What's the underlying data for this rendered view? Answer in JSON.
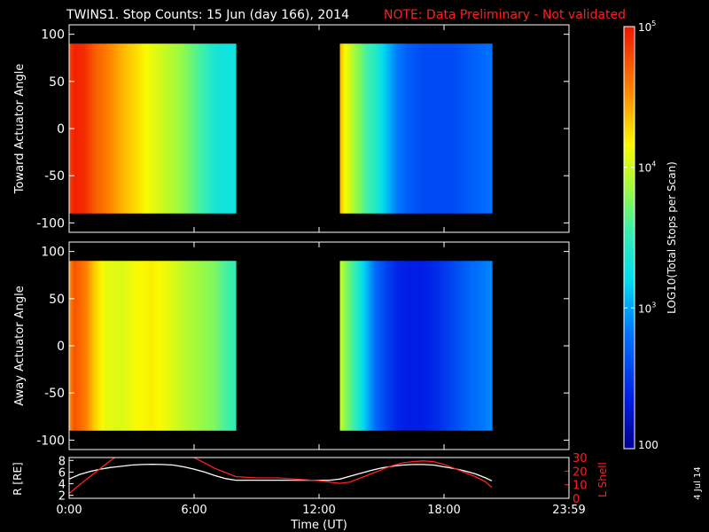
{
  "title": "TWINS1. Stop Counts: 15 Jun (day 166), 2014",
  "note": "NOTE: Data Preliminary - Not validated",
  "stamp": "4 Jul 14",
  "colors": {
    "background": "#000000",
    "axes": "#ffffff",
    "note": "#ff2020",
    "lshell": "#ff2020",
    "radius": "#ffffff"
  },
  "chart_data": [
    {
      "type": "heatmap",
      "panel": "toward",
      "ylabel": "Toward Actuator Angle",
      "ylim": [
        -110,
        110
      ],
      "yticks": [
        100,
        50,
        0,
        -50,
        -100
      ],
      "xlim": [
        0,
        24
      ],
      "y_range_data": [
        -90,
        90
      ],
      "time_blocks_hours": [
        [
          0.0,
          8.0
        ],
        [
          13.0,
          20.3
        ]
      ],
      "profile_time_hours": [
        0,
        0.25,
        0.75,
        1.25,
        1.75,
        2.5,
        3.25,
        4.0,
        4.75,
        5.5,
        6.25,
        7.0,
        7.5,
        8.0,
        13.0,
        13.25,
        13.75,
        14.25,
        14.75,
        15.25,
        15.75,
        16.25,
        17.0,
        17.75,
        18.5,
        19.25,
        20.3
      ],
      "profile_log10_counts": [
        4.8,
        4.95,
        4.9,
        4.7,
        4.6,
        4.4,
        4.25,
        4.1,
        3.95,
        3.8,
        3.6,
        3.35,
        3.3,
        3.3,
        4.4,
        4.15,
        3.85,
        3.6,
        3.4,
        3.1,
        2.85,
        2.7,
        2.6,
        2.6,
        2.6,
        2.7,
        2.8
      ]
    },
    {
      "type": "heatmap",
      "panel": "away",
      "ylabel": "Away Actuator Angle",
      "ylim": [
        -110,
        110
      ],
      "yticks": [
        100,
        50,
        0,
        -50,
        -100
      ],
      "xlim": [
        0,
        24
      ],
      "y_range_data": [
        -90,
        90
      ],
      "time_blocks_hours": [
        [
          0.0,
          8.0
        ],
        [
          13.0,
          20.3
        ]
      ],
      "profile_time_hours": [
        0,
        0.25,
        0.75,
        1.25,
        1.75,
        2.5,
        3.25,
        4.0,
        4.75,
        5.5,
        6.25,
        7.0,
        7.5,
        8.0,
        13.0,
        13.25,
        13.75,
        14.25,
        14.75,
        15.25,
        15.75,
        16.25,
        17.0,
        17.75,
        18.5,
        19.25,
        20.3
      ],
      "profile_log10_counts": [
        4.5,
        4.75,
        4.6,
        4.3,
        4.1,
        4.05,
        4.15,
        4.2,
        4.1,
        3.95,
        3.85,
        3.75,
        3.6,
        3.5,
        4.0,
        3.8,
        3.5,
        3.1,
        2.75,
        2.55,
        2.4,
        2.35,
        2.35,
        2.45,
        2.6,
        2.75,
        2.9
      ]
    },
    {
      "type": "line",
      "panel": "orbit",
      "xlabel": "Time (UT)",
      "xlim": [
        0,
        24
      ],
      "xtick_values": [
        0,
        6,
        12,
        18,
        24
      ],
      "xtick_labels": [
        "0:00",
        "6:00",
        "12:00",
        "18:00",
        "23:59"
      ],
      "left_axis": {
        "label": "R [RE]",
        "ylim": [
          1.5,
          8.5
        ],
        "yticks": [
          2,
          4,
          6,
          8
        ]
      },
      "right_axis": {
        "label": "L Shell",
        "ylim": [
          0,
          30
        ],
        "yticks": [
          0,
          10,
          20,
          30
        ]
      },
      "series": [
        {
          "axis": "left",
          "x": [
            0,
            0.5,
            1,
            1.5,
            2,
            2.5,
            3,
            3.5,
            4,
            4.5,
            5,
            5.5,
            6,
            6.5,
            7,
            7.5,
            8,
            9,
            10,
            11,
            12,
            12.5,
            13,
            13.5,
            14,
            14.5,
            15,
            15.5,
            16,
            16.5,
            17,
            17.5,
            18,
            18.5,
            19,
            19.5,
            20,
            20.3
          ],
          "y": [
            4.8,
            5.6,
            6.1,
            6.5,
            6.8,
            7.0,
            7.2,
            7.3,
            7.35,
            7.3,
            7.2,
            6.9,
            6.5,
            6.0,
            5.4,
            4.9,
            4.6,
            4.6,
            4.6,
            4.6,
            4.6,
            4.6,
            4.8,
            5.3,
            5.8,
            6.3,
            6.7,
            7.0,
            7.2,
            7.3,
            7.3,
            7.2,
            6.9,
            6.6,
            6.2,
            5.7,
            5.0,
            4.5
          ]
        },
        {
          "axis": "right",
          "x": [
            0,
            0.5,
            1,
            1.5,
            2,
            2.5,
            5.5,
            6,
            6.5,
            7,
            7.5,
            8,
            9,
            10,
            11,
            12,
            12.5,
            13,
            13.5,
            14,
            14.5,
            15,
            15.5,
            16,
            16.5,
            17,
            17.5,
            18,
            18.5,
            19,
            19.5,
            20,
            20.3
          ],
          "y": [
            3.5,
            10,
            16,
            22,
            28,
            33,
            33,
            30,
            26,
            22,
            19,
            16,
            15,
            15,
            14,
            13,
            12,
            11,
            12,
            15,
            18,
            21,
            24,
            26,
            27,
            27.5,
            27,
            25,
            22,
            19,
            16,
            12,
            8
          ]
        }
      ]
    },
    {
      "type": "colorbar",
      "label": "LOG10(Total Stops per Scan)",
      "tick_values": [
        2,
        3,
        4,
        5
      ],
      "tick_labels": [
        "100",
        "10",
        "10",
        "10"
      ],
      "tick_exponents": [
        "",
        "3",
        "4",
        "5"
      ],
      "clim_log10": [
        2,
        5
      ]
    }
  ]
}
